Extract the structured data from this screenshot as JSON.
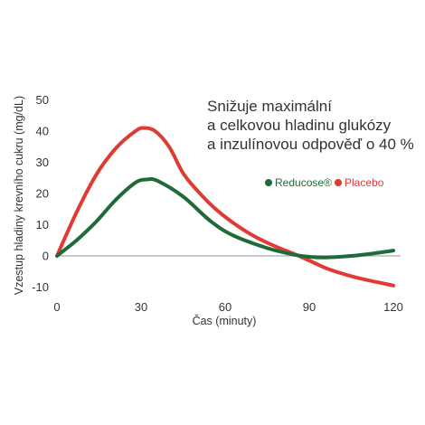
{
  "chart_data": {
    "type": "line",
    "title_lines": [
      "Snižuje maximální",
      "a celkovou hladinu glukózy",
      "a inzulínovou odpověď o 40 %"
    ],
    "xlabel": "Čas  (minuty)",
    "ylabel": "Vzestup hladiny krevního cukru  (mg/dL)",
    "xlim": [
      0,
      120
    ],
    "ylim": [
      -12,
      50
    ],
    "x_ticks": [
      0,
      30,
      60,
      90,
      120
    ],
    "x_tick_labels": [
      "0",
      "30",
      "60",
      "90",
      "120"
    ],
    "y_ticks": [
      -10,
      0,
      10,
      20,
      30,
      40,
      50
    ],
    "y_tick_labels": [
      "-10",
      "0",
      "10",
      "20",
      "30",
      "40",
      "50"
    ],
    "grid": false,
    "legend_position": "right",
    "series": [
      {
        "name": "Reducose®",
        "color": "#1e6b37",
        "points": [
          [
            0,
            0
          ],
          [
            7,
            5
          ],
          [
            14,
            11
          ],
          [
            21,
            18
          ],
          [
            28,
            23.5
          ],
          [
            32,
            24.5
          ],
          [
            36,
            24
          ],
          [
            45,
            19
          ],
          [
            55,
            11
          ],
          [
            63,
            6.5
          ],
          [
            75,
            2.5
          ],
          [
            84,
            0.5
          ],
          [
            90,
            -0.3
          ],
          [
            96,
            -0.5
          ],
          [
            105,
            0
          ],
          [
            112,
            0.7
          ],
          [
            120,
            1.7
          ]
        ]
      },
      {
        "name": "Placebo",
        "color": "#e03a35",
        "points": [
          [
            0,
            0
          ],
          [
            7,
            14
          ],
          [
            14,
            26
          ],
          [
            21,
            34.5
          ],
          [
            28,
            40
          ],
          [
            31,
            41
          ],
          [
            35,
            40
          ],
          [
            40,
            35
          ],
          [
            45,
            26.5
          ],
          [
            50,
            21
          ],
          [
            56,
            15.5
          ],
          [
            63,
            10.5
          ],
          [
            70,
            6.5
          ],
          [
            78,
            3
          ],
          [
            85,
            0.5
          ],
          [
            90,
            -1.5
          ],
          [
            97,
            -4.3
          ],
          [
            105,
            -6.5
          ],
          [
            112,
            -8
          ],
          [
            120,
            -9.5
          ]
        ]
      }
    ]
  }
}
